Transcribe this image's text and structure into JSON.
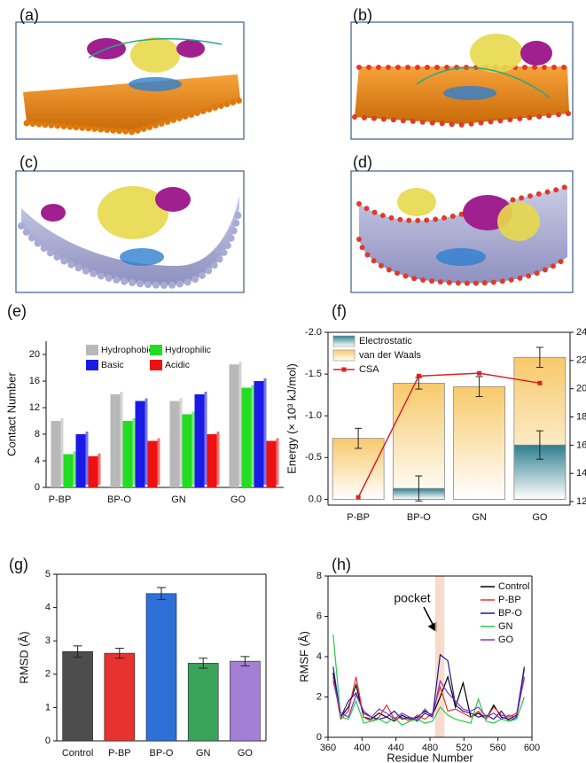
{
  "images": [
    {
      "label": "(a)"
    },
    {
      "label": "(b)"
    },
    {
      "label": "(c)"
    },
    {
      "label": "(d)"
    }
  ],
  "chart_data": [
    {
      "type": "bar3d",
      "panel_label": "(e)",
      "ylabel": "Contact Number",
      "categories": [
        "P-BP",
        "BP-O",
        "GN",
        "GO"
      ],
      "series": [
        {
          "name": "Hydrophobic",
          "color": "#b8b8b8",
          "values": [
            10,
            14,
            13,
            18.5
          ]
        },
        {
          "name": "Hydrophilic",
          "color": "#22dd22",
          "values": [
            5,
            10,
            11,
            15
          ]
        },
        {
          "name": "Basic",
          "color": "#1a1ae6",
          "values": [
            8,
            13,
            14,
            16
          ]
        },
        {
          "name": "Acidic",
          "color": "#ee1111",
          "values": [
            4.7,
            7,
            8,
            7
          ]
        }
      ],
      "ylim": [
        0,
        22
      ],
      "yticks": [
        0,
        4,
        8,
        12,
        16,
        20
      ]
    },
    {
      "type": "bar_line",
      "panel_label": "(f)",
      "ylabel": "Energy (× 10³ kJ/mol)",
      "y2label": "CSA (nm²)",
      "categories": [
        "P-BP",
        "BP-O",
        "GN",
        "GO"
      ],
      "series": [
        {
          "name": "Electrostatic",
          "color": "#2f7f8f",
          "values": [
            0,
            -0.13,
            0,
            -0.65
          ],
          "errors": [
            null,
            0.15,
            null,
            0.17
          ]
        },
        {
          "name": "van der Waals",
          "color": "#f7c96a",
          "values": [
            -0.73,
            -1.39,
            -1.35,
            -1.7
          ],
          "errors": [
            0.12,
            0.07,
            0.12,
            0.12
          ]
        },
        {
          "name": "CSA",
          "color": "#dd2222",
          "axis": "y2",
          "values": [
            12.3,
            20.9,
            21.1,
            20.4
          ]
        }
      ],
      "ylim": [
        0.07,
        -2.0
      ],
      "yticks": [
        {
          "value": 0,
          "label": "0.0"
        },
        -0.5,
        {
          "value": -1,
          "label": "-1.0"
        },
        -1.5,
        {
          "value": -2,
          "label": "-2.0"
        }
      ],
      "y2lim": [
        11.75,
        24
      ],
      "y2ticks": [
        12,
        14,
        16,
        18,
        20,
        22,
        24
      ]
    },
    {
      "type": "bar",
      "panel_label": "(g)",
      "ylabel": "RMSD (Å)",
      "categories": [
        "Control",
        "P-BP",
        "BP-O",
        "GN",
        "GO"
      ],
      "values": [
        2.68,
        2.63,
        4.42,
        2.33,
        2.39
      ],
      "errors": [
        0.17,
        0.15,
        0.18,
        0.15,
        0.14
      ],
      "colors": [
        "#4d4d4d",
        "#e8322f",
        "#2e6fd8",
        "#3aa35a",
        "#a57fd6"
      ],
      "ylim": [
        0,
        5
      ],
      "yticks": [
        0,
        1,
        2,
        3,
        4,
        5
      ]
    },
    {
      "type": "line",
      "panel_label": "(h)",
      "ylabel": "RMSF (Å)",
      "xlabel": "Residue Number",
      "annotation": "pocket",
      "highlight_range": [
        486,
        497
      ],
      "x": [
        366,
        375,
        384,
        393,
        402,
        411,
        420,
        429,
        438,
        447,
        456,
        465,
        474,
        483,
        492,
        501,
        510,
        519,
        528,
        537,
        546,
        555,
        564,
        573,
        582,
        591
      ],
      "series": [
        {
          "name": "Control",
          "color": "#000000",
          "values": [
            3.2,
            1.0,
            1.5,
            2.6,
            1.0,
            0.9,
            1.2,
            1.0,
            0.8,
            1.1,
            0.9,
            1.0,
            1.3,
            1.1,
            2.0,
            3.0,
            1.5,
            2.7,
            1.0,
            1.2,
            0.9,
            1.6,
            1.0,
            0.9,
            1.1,
            3.4
          ]
        },
        {
          "name": "P-BP",
          "color": "#e8322f",
          "values": [
            3.0,
            0.9,
            1.3,
            3.0,
            1.0,
            0.8,
            1.0,
            1.6,
            0.9,
            1.0,
            0.8,
            1.1,
            0.9,
            1.2,
            2.5,
            1.3,
            1.4,
            1.2,
            1.0,
            1.3,
            0.9,
            1.5,
            1.1,
            1.0,
            1.2,
            2.9
          ]
        },
        {
          "name": "BP-O",
          "color": "#1a1a8c",
          "values": [
            3.5,
            1.0,
            1.8,
            2.2,
            1.2,
            1.0,
            0.9,
            1.0,
            1.3,
            0.9,
            1.0,
            0.8,
            1.2,
            1.0,
            4.1,
            3.8,
            1.6,
            1.3,
            1.2,
            1.0,
            1.1,
            0.9,
            1.3,
            0.8,
            1.0,
            3.5
          ]
        },
        {
          "name": "GN",
          "color": "#22cc44",
          "values": [
            5.1,
            1.0,
            0.9,
            1.8,
            0.7,
            0.8,
            0.9,
            0.7,
            1.0,
            0.6,
            0.8,
            0.9,
            0.7,
            0.8,
            1.5,
            1.1,
            0.9,
            0.8,
            0.7,
            1.9,
            0.8,
            0.7,
            0.9,
            0.8,
            0.9,
            2.0
          ]
        },
        {
          "name": "GO",
          "color": "#8833cc",
          "values": [
            2.8,
            1.2,
            1.0,
            2.1,
            1.3,
            1.0,
            1.4,
            1.2,
            0.9,
            1.2,
            1.0,
            0.9,
            1.4,
            1.0,
            2.8,
            2.2,
            1.8,
            1.4,
            1.3,
            1.5,
            1.0,
            1.2,
            0.9,
            1.1,
            1.0,
            3.0
          ]
        }
      ],
      "xlim": [
        360,
        600
      ],
      "xticks": [
        360,
        400,
        440,
        480,
        520,
        560,
        600
      ],
      "ylim": [
        0,
        8
      ],
      "yticks": [
        0,
        2,
        4,
        6,
        8
      ]
    }
  ]
}
